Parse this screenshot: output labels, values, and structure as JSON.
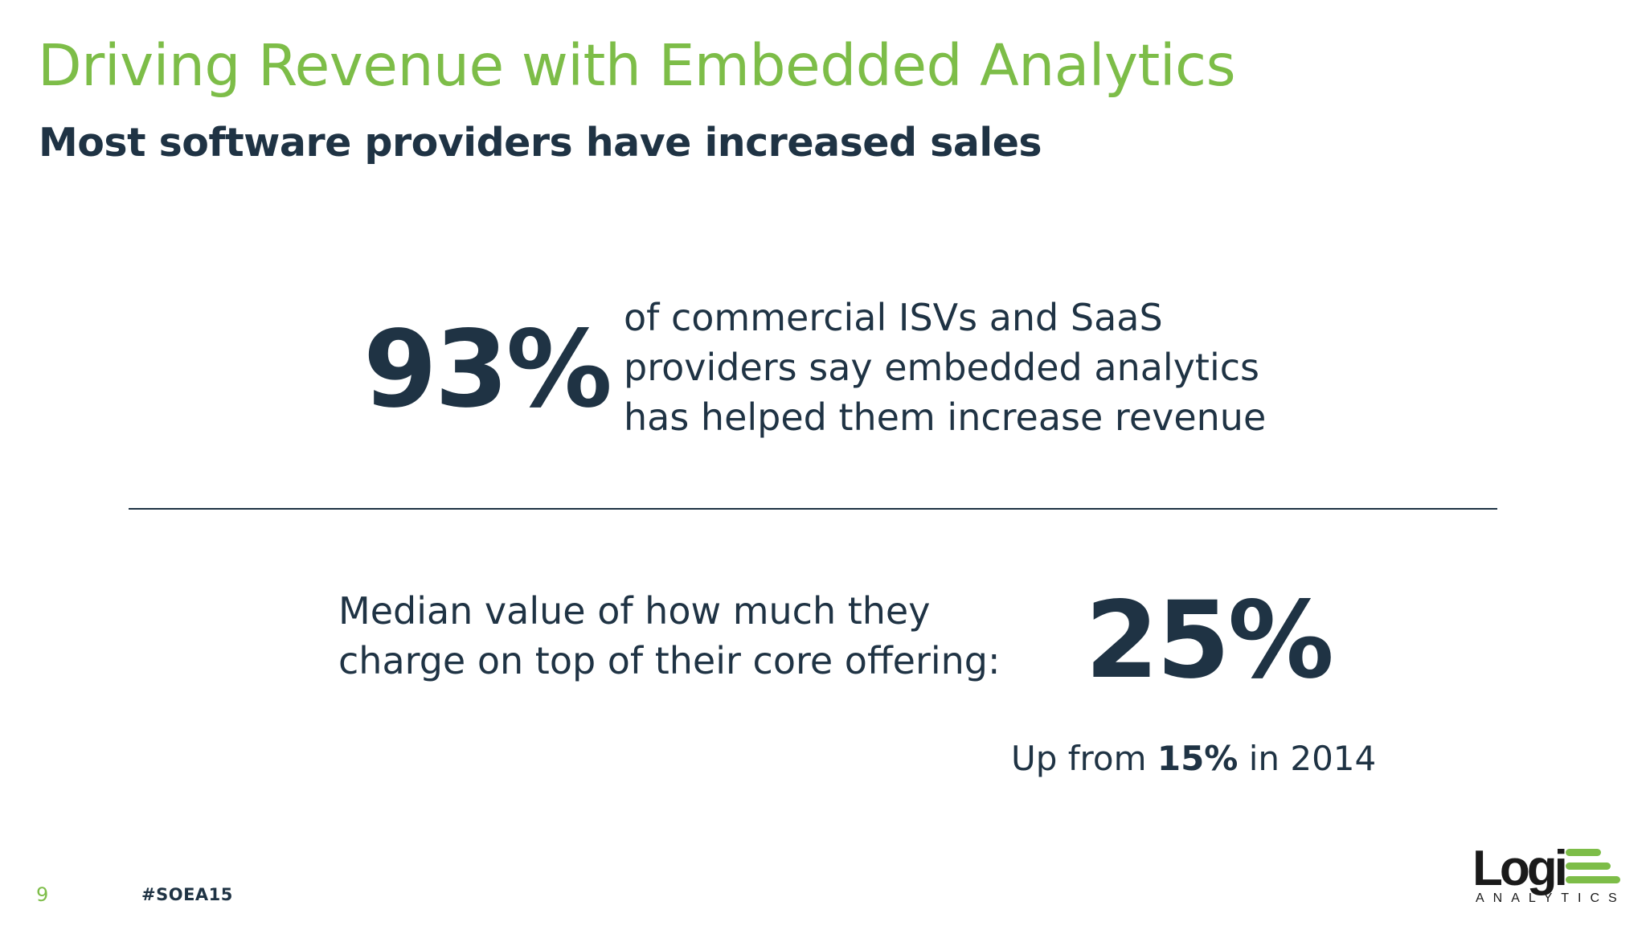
{
  "slide": {
    "title": "Driving Revenue with Embedded Analytics",
    "subtitle": "Most software providers have increased sales"
  },
  "stat_one": {
    "value": "93%",
    "lines": [
      "of commercial ISVs and SaaS",
      "providers say embedded analytics",
      "has helped them increase revenue"
    ]
  },
  "stat_two": {
    "lines": [
      "Median value of how much they",
      "charge on top of their core offering:"
    ],
    "value": "25%",
    "note_prefix": "Up from ",
    "note_bold": "15%",
    "note_suffix": " in 2014"
  },
  "footer": {
    "page_number": "9",
    "hashtag": "#SOEA15"
  },
  "logo": {
    "word": "Logi",
    "sub": "ANALYTICS",
    "icon": "logi-bars-icon"
  },
  "colors": {
    "accent_green": "#7dbd48",
    "text_navy": "#1f3344"
  }
}
